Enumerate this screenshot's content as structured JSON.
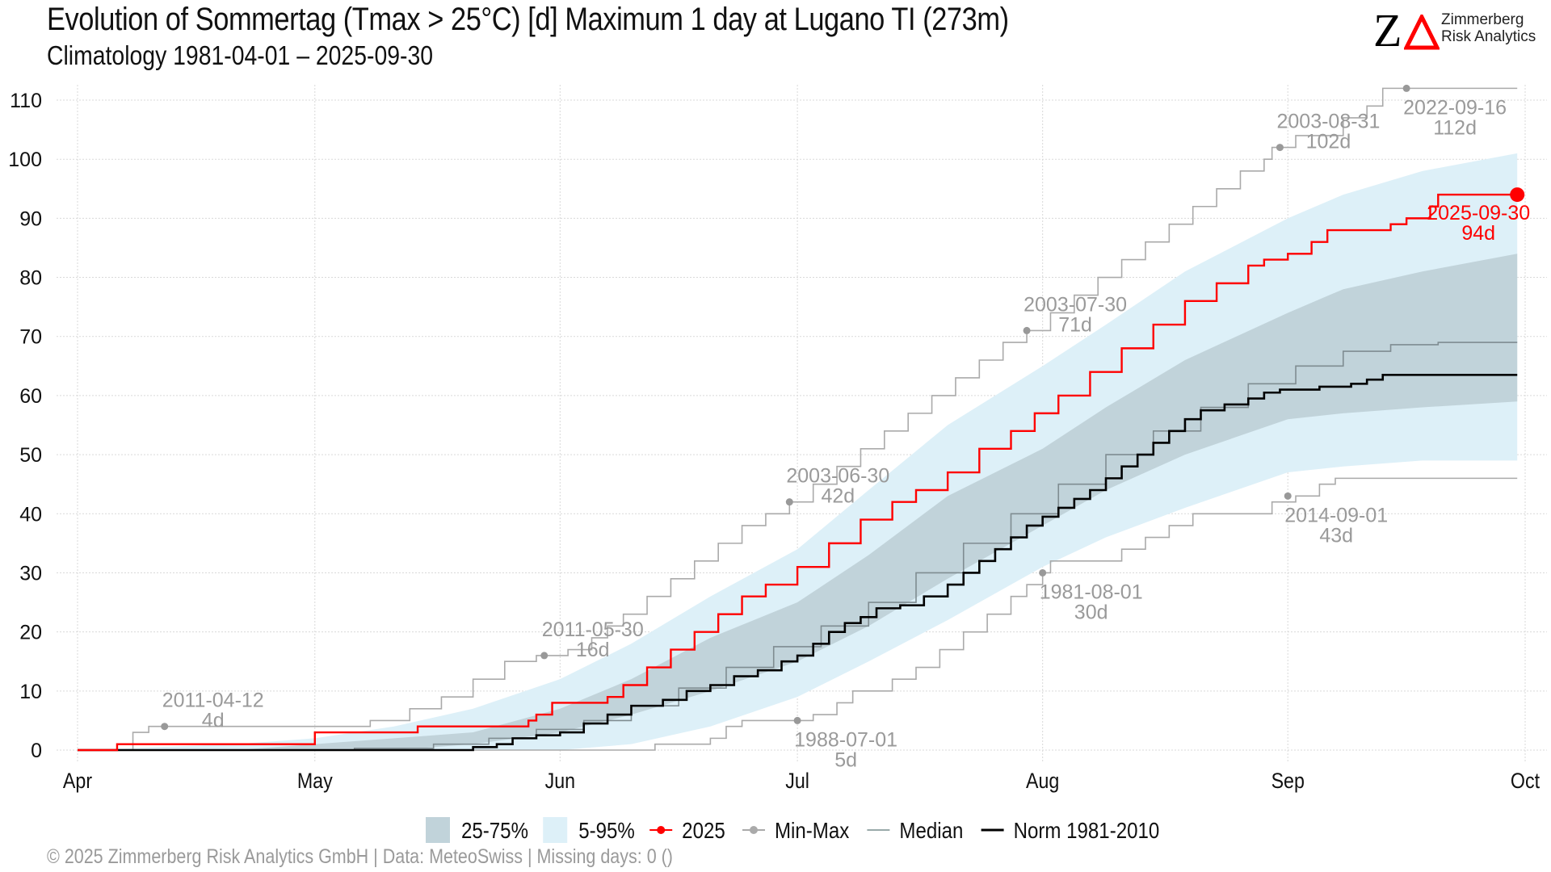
{
  "header": {
    "title": "Evolution of Sommertag (Tmax > 25°C) [d] Maximum 1 day at Lugano  TI (273m)",
    "subtitle": "Climatology 1981-04-01 – 2025-09-30"
  },
  "logo": {
    "letter": "Z",
    "line1": "Zimmerberg",
    "line2": "Risk Analytics",
    "accent": "#ff0000"
  },
  "footer": "©  2025 Zimmerberg Risk Analytics GmbH | Data: MeteoSwiss | Missing days: 0 ()",
  "colors": {
    "current": "#ff0000",
    "minmax": "#aaaaaa",
    "median": "#7f8c91",
    "norm": "#000000",
    "iqr": "#c1d3da",
    "p5_95": "#ddf0f8",
    "annotation": "#9a9a9a"
  },
  "chart_data": {
    "type": "line",
    "title": "Evolution of Sommertag (Tmax > 25°C) [d] Maximum 1 day at Lugano  TI (273m)",
    "subtitle": "Climatology 1981-04-01 – 2025-09-30",
    "xlabel": "",
    "ylabel": "",
    "x_unit": "day since Apr 1",
    "xlim": [
      0,
      183
    ],
    "ylim": [
      -2,
      112
    ],
    "grid": true,
    "x_ticks": [
      {
        "day": 0,
        "label": "Apr"
      },
      {
        "day": 30,
        "label": "May"
      },
      {
        "day": 61,
        "label": "Jun"
      },
      {
        "day": 91,
        "label": "Jul"
      },
      {
        "day": 122,
        "label": "Aug"
      },
      {
        "day": 153,
        "label": "Sep"
      },
      {
        "day": 183,
        "label": "Oct"
      }
    ],
    "y_ticks": [
      0,
      10,
      20,
      30,
      40,
      50,
      60,
      70,
      80,
      90,
      100,
      110
    ],
    "legend": {
      "placement": "bottom",
      "items": [
        {
          "key": "iqr",
          "label": "25-75%",
          "kind": "fill"
        },
        {
          "key": "p5_95",
          "label": "5-95%",
          "kind": "fill"
        },
        {
          "key": "current",
          "label": "2025",
          "kind": "line-point"
        },
        {
          "key": "minmax",
          "label": "Min-Max",
          "kind": "line-point"
        },
        {
          "key": "median",
          "label": "Median",
          "kind": "line"
        },
        {
          "key": "norm",
          "label": "Norm 1981-2010",
          "kind": "line"
        }
      ]
    },
    "bands": {
      "x": [
        0,
        20,
        30,
        40,
        50,
        61,
        70,
        80,
        91,
        100,
        110,
        122,
        130,
        140,
        153,
        160,
        170,
        182
      ],
      "p5": [
        0,
        0,
        0,
        0,
        0,
        0,
        1,
        4,
        9,
        15,
        22,
        31,
        36,
        41,
        47,
        48,
        49,
        49
      ],
      "p25": [
        0,
        0,
        0,
        0,
        1,
        3,
        6,
        10,
        15,
        21,
        29,
        38,
        44,
        50,
        56,
        57,
        58,
        59
      ],
      "p75": [
        0,
        0,
        1,
        2,
        3,
        7,
        12,
        19,
        25,
        33,
        43,
        51,
        58,
        66,
        74,
        78,
        81,
        84
      ],
      "p95": [
        0,
        1,
        2,
        4,
        7,
        12,
        18,
        26,
        34,
        44,
        55,
        65,
        72,
        81,
        90,
        94,
        98,
        101
      ]
    },
    "series": [
      {
        "name": "2025",
        "key": "current",
        "steps": [
          [
            0,
            0
          ],
          [
            5,
            1
          ],
          [
            30,
            3
          ],
          [
            43,
            4
          ],
          [
            57,
            5
          ],
          [
            58,
            6
          ],
          [
            60,
            8
          ],
          [
            67,
            9
          ],
          [
            69,
            11
          ],
          [
            72,
            14
          ],
          [
            75,
            17
          ],
          [
            78,
            20
          ],
          [
            81,
            23
          ],
          [
            84,
            26
          ],
          [
            87,
            28
          ],
          [
            91,
            31
          ],
          [
            95,
            35
          ],
          [
            99,
            39
          ],
          [
            103,
            42
          ],
          [
            106,
            44
          ],
          [
            110,
            47
          ],
          [
            114,
            51
          ],
          [
            118,
            54
          ],
          [
            121,
            57
          ],
          [
            124,
            60
          ],
          [
            128,
            64
          ],
          [
            132,
            68
          ],
          [
            136,
            72
          ],
          [
            140,
            76
          ],
          [
            144,
            79
          ],
          [
            148,
            82
          ],
          [
            150,
            83
          ],
          [
            153,
            84
          ],
          [
            156,
            86
          ],
          [
            158,
            88
          ],
          [
            166,
            89
          ],
          [
            168,
            90
          ],
          [
            171,
            92
          ],
          [
            172,
            94
          ]
        ],
        "end_day": 182,
        "end_label": "2025-09-30",
        "end_value_label": "94d"
      },
      {
        "name": "Max",
        "key": "minmax",
        "steps": [
          [
            0,
            0
          ],
          [
            7,
            3
          ],
          [
            9,
            4
          ],
          [
            37,
            5
          ],
          [
            42,
            7
          ],
          [
            46,
            9
          ],
          [
            50,
            12
          ],
          [
            54,
            15
          ],
          [
            58,
            16
          ],
          [
            62,
            17
          ],
          [
            65,
            19
          ],
          [
            67,
            21
          ],
          [
            69,
            23
          ],
          [
            72,
            26
          ],
          [
            75,
            29
          ],
          [
            78,
            32
          ],
          [
            81,
            35
          ],
          [
            84,
            38
          ],
          [
            87,
            40
          ],
          [
            90,
            42
          ],
          [
            93,
            45
          ],
          [
            96,
            48
          ],
          [
            99,
            51
          ],
          [
            102,
            54
          ],
          [
            105,
            57
          ],
          [
            108,
            60
          ],
          [
            111,
            63
          ],
          [
            114,
            66
          ],
          [
            117,
            69
          ],
          [
            120,
            71
          ],
          [
            123,
            74
          ],
          [
            126,
            77
          ],
          [
            129,
            80
          ],
          [
            132,
            83
          ],
          [
            135,
            86
          ],
          [
            138,
            89
          ],
          [
            141,
            92
          ],
          [
            144,
            95
          ],
          [
            147,
            98
          ],
          [
            150,
            100
          ],
          [
            151,
            102
          ],
          [
            154,
            104
          ],
          [
            160,
            107
          ],
          [
            163,
            109
          ],
          [
            165,
            112
          ]
        ],
        "end_day": 182
      },
      {
        "name": "Min",
        "key": "minmax",
        "steps": [
          [
            0,
            0
          ],
          [
            73,
            1
          ],
          [
            80,
            2
          ],
          [
            82,
            4
          ],
          [
            84,
            5
          ],
          [
            93,
            6
          ],
          [
            96,
            8
          ],
          [
            98,
            10
          ],
          [
            103,
            12
          ],
          [
            106,
            14
          ],
          [
            109,
            17
          ],
          [
            112,
            20
          ],
          [
            115,
            23
          ],
          [
            118,
            26
          ],
          [
            120,
            28
          ],
          [
            122,
            30
          ],
          [
            123,
            32
          ],
          [
            132,
            34
          ],
          [
            135,
            36
          ],
          [
            138,
            38
          ],
          [
            141,
            40
          ],
          [
            151,
            42
          ],
          [
            154,
            43
          ],
          [
            157,
            45
          ],
          [
            159,
            46
          ]
        ],
        "end_day": 182
      },
      {
        "name": "Median",
        "key": "median",
        "steps": [
          [
            0,
            0
          ],
          [
            35,
            0.3
          ],
          [
            45,
            1
          ],
          [
            52,
            2
          ],
          [
            58,
            3.5
          ],
          [
            64,
            5
          ],
          [
            70,
            7.5
          ],
          [
            76,
            10.5
          ],
          [
            82,
            14
          ],
          [
            88,
            17.5
          ],
          [
            94,
            21
          ],
          [
            100,
            25
          ],
          [
            106,
            30
          ],
          [
            112,
            35
          ],
          [
            118,
            40
          ],
          [
            124,
            45
          ],
          [
            130,
            50
          ],
          [
            136,
            54
          ],
          [
            142,
            58
          ],
          [
            148,
            62
          ],
          [
            154,
            65
          ],
          [
            160,
            67.5
          ],
          [
            166,
            68.6
          ],
          [
            172,
            69
          ],
          [
            182,
            69
          ]
        ],
        "end_day": 182
      },
      {
        "name": "Norm 1981-2010",
        "key": "norm",
        "steps": [
          [
            0,
            0
          ],
          [
            50,
            0.5
          ],
          [
            53,
            1
          ],
          [
            55,
            2
          ],
          [
            58,
            2.5
          ],
          [
            61,
            3
          ],
          [
            64,
            4.5
          ],
          [
            67,
            6
          ],
          [
            70,
            7.5
          ],
          [
            74,
            8.5
          ],
          [
            77,
            10
          ],
          [
            80,
            11
          ],
          [
            83,
            12.5
          ],
          [
            86,
            13.5
          ],
          [
            89,
            15
          ],
          [
            91,
            16
          ],
          [
            93,
            18
          ],
          [
            95,
            20
          ],
          [
            97,
            21.5
          ],
          [
            99,
            22.5
          ],
          [
            101,
            24
          ],
          [
            104,
            24.5
          ],
          [
            107,
            26
          ],
          [
            110,
            28
          ],
          [
            112,
            30
          ],
          [
            114,
            32
          ],
          [
            116,
            34
          ],
          [
            118,
            36
          ],
          [
            120,
            38
          ],
          [
            122,
            39.5
          ],
          [
            124,
            41
          ],
          [
            126,
            42.5
          ],
          [
            128,
            44
          ],
          [
            130,
            46
          ],
          [
            132,
            48
          ],
          [
            134,
            50
          ],
          [
            136,
            52
          ],
          [
            138,
            54
          ],
          [
            140,
            56
          ],
          [
            142,
            57.5
          ],
          [
            145,
            58.5
          ],
          [
            148,
            59.5
          ],
          [
            150,
            60.5
          ],
          [
            152,
            61
          ],
          [
            157,
            61.5
          ],
          [
            161,
            62
          ],
          [
            163,
            62.7
          ],
          [
            165,
            63.5
          ]
        ],
        "end_day": 182
      }
    ],
    "extreme_points": [
      {
        "day": 11,
        "value": 4,
        "label": "2011-04-12",
        "value_label": "4d",
        "pos": "above"
      },
      {
        "day": 59,
        "value": 16,
        "label": "2011-05-30",
        "value_label": "16d",
        "pos": "above"
      },
      {
        "day": 90,
        "value": 42,
        "label": "2003-06-30",
        "value_label": "42d",
        "pos": "above"
      },
      {
        "day": 120,
        "value": 71,
        "label": "2003-07-30",
        "value_label": "71d",
        "pos": "above"
      },
      {
        "day": 152,
        "value": 102,
        "label": "2003-08-31",
        "value_label": "102d",
        "pos": "above"
      },
      {
        "day": 168,
        "value": 112,
        "label": "2022-09-16",
        "value_label": "112d",
        "pos": "below"
      },
      {
        "day": 91,
        "value": 5,
        "label": "1988-07-01",
        "value_label": "5d",
        "pos": "below"
      },
      {
        "day": 122,
        "value": 30,
        "label": "1981-08-01",
        "value_label": "30d",
        "pos": "below"
      },
      {
        "day": 153,
        "value": 43,
        "label": "2014-09-01",
        "value_label": "43d",
        "pos": "below"
      }
    ]
  }
}
